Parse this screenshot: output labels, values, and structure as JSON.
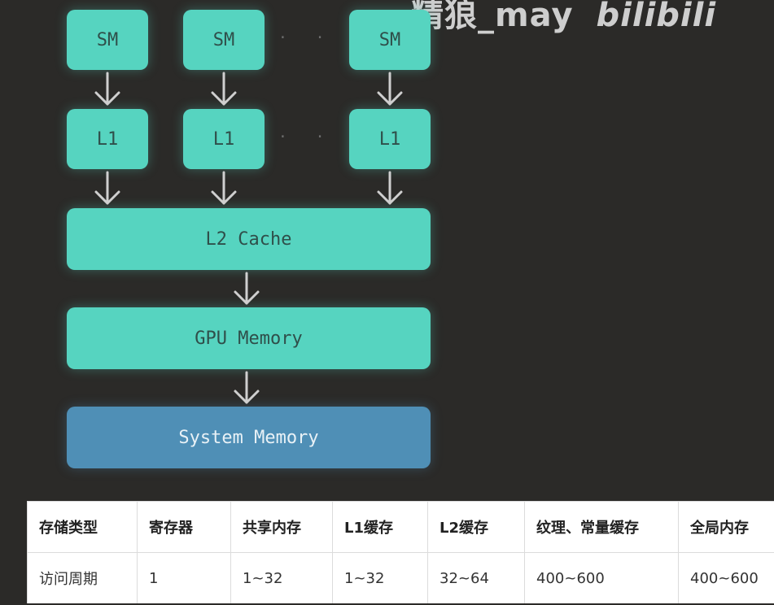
{
  "watermark": {
    "text": "精狼_may",
    "logo": "bilibili"
  },
  "diagram": {
    "sm_label": "SM",
    "l1_label": "L1",
    "ellipsis": "· · · ·",
    "l2_label": "L2 Cache",
    "gpu_memory_label": "GPU Memory",
    "system_memory_label": "System Memory",
    "colors": {
      "teal": "#56d4c0",
      "blue": "#4f8fb6",
      "arrow": "#cfcfcf"
    }
  },
  "table": {
    "headers": [
      "存储类型",
      "寄存器",
      "共享内存",
      "L1缓存",
      "L2缓存",
      "纹理、常量缓存",
      "全局内存"
    ],
    "row": [
      "访问周期",
      "1",
      "1~32",
      "1~32",
      "32~64",
      "400~600",
      "400~600"
    ]
  }
}
